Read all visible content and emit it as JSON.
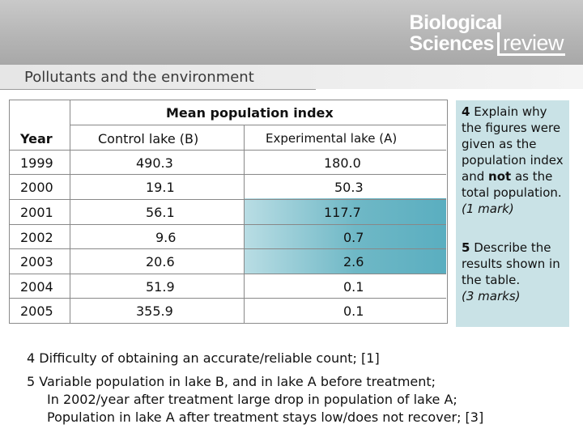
{
  "header": {
    "logo_line1": "Biological",
    "logo_line2": "Sciences",
    "logo_line3": "review",
    "subtitle": "Pollutants and the environment"
  },
  "table": {
    "group_header": "Mean population index",
    "col_year": "Year",
    "col_control": "Control lake (B)",
    "col_experimental": "Experimental lake (A)",
    "rows": [
      {
        "year": "1999",
        "control": "490.3",
        "experimental": "180.0"
      },
      {
        "year": "2000",
        "control": "19.1",
        "experimental": "50.3"
      },
      {
        "year": "2001",
        "control": "56.1",
        "experimental": "117.7"
      },
      {
        "year": "2002",
        "control": "9.6",
        "experimental": "0.7"
      },
      {
        "year": "2003",
        "control": "20.6",
        "experimental": "2.6"
      },
      {
        "year": "2004",
        "control": "51.9",
        "experimental": "0.1"
      },
      {
        "year": "2005",
        "control": "355.9",
        "experimental": "0.1"
      }
    ]
  },
  "questions": {
    "q4_num": "4",
    "q4_text_a": "Explain why the figures were given as the population index and",
    "q4_bold": "not",
    "q4_text_b": "as the total population.",
    "q4_marks": "(1 mark)",
    "q5_num": "5",
    "q5_text": "Describe the results shown in the table.",
    "q5_marks": "(3 marks)"
  },
  "answers": {
    "a4": "4 Difficulty of obtaining an accurate/reliable count; [1]",
    "a5_line1": "5 Variable population in lake B, and in lake A before treatment;",
    "a5_line2": "In 2002/year after treatment large drop in population of lake A;",
    "a5_line3": "Population in lake A after treatment stays low/does not recover;  [3]"
  },
  "colors": {
    "teal_highlight": "#6fb8c6",
    "question_box": "#c9e2e6",
    "banner": "#b4b4b4"
  }
}
